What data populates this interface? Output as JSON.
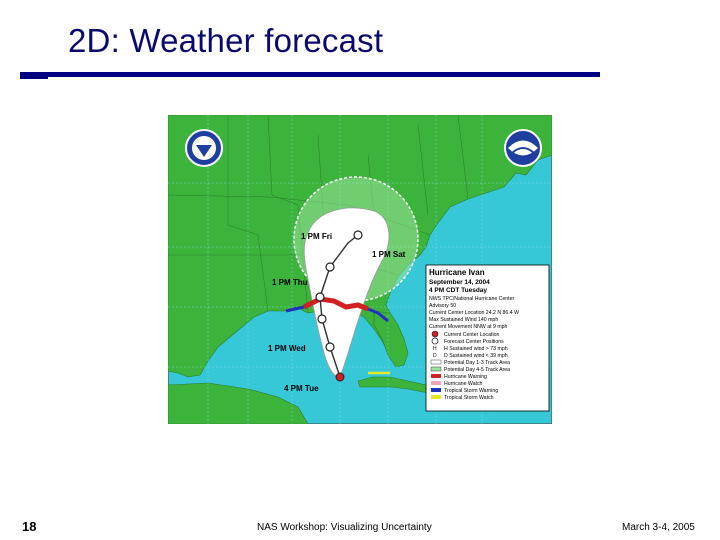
{
  "slide": {
    "title": "2D: Weather forecast",
    "number": "18",
    "footer_center": "NAS Workshop: Visualizing Uncertainty",
    "footer_date": "March 3-4, 2005"
  },
  "map": {
    "legend": {
      "title": "Hurricane Ivan",
      "date": "September 14, 2004",
      "time": "4 PM CDT Tuesday",
      "source": "NWS TPC/National Hurricane Center",
      "advisory": "Advisory 50",
      "center_location": "Current Center Location 24.2 N 86.4 W",
      "max_wind": "Max Sustained Wind 140 mph",
      "movement": "Current Movement NNW at 9 mph",
      "items": [
        "Current Center Location",
        "Forecast Center Positions",
        "H Sustained wind > 73 mph",
        "D Sustained wind < 39 mph",
        "Potential Day 1-3 Track Area",
        "Potential Day 4-5 Track Area",
        "Hurricane Warning",
        "Hurricane Watch",
        "Tropical Storm Warning",
        "Tropical Storm Watch"
      ]
    },
    "forecast_labels": [
      "1 PM Fri",
      "1 PM Sat",
      "1 PM Thu",
      "1 PM Wed",
      "4 PM Tue"
    ],
    "colors": {
      "ocean": "#37c8d8",
      "land": "#3cb43c",
      "cone": "#ffffff",
      "hurricane_warning": "#d02020",
      "tropical_storm_warning": "#2030c0",
      "tropical_storm_watch": "#e8e820",
      "track": "#303030"
    },
    "logos": [
      "NWS logo",
      "NOAA logo"
    ]
  }
}
